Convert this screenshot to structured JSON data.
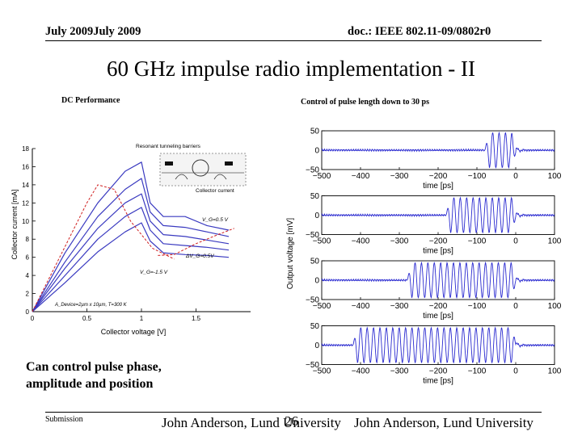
{
  "header": {
    "date": "July 2009July 2009",
    "doc": "doc.: IEEE 802.11-09/0802r0"
  },
  "title": "60 GHz impulse radio implementation - II",
  "left_caption": "DC Performance",
  "right_caption": "Control of pulse length down to 30 ps",
  "note_lines": [
    "Can control pulse phase,",
    "amplitude and position"
  ],
  "footer": {
    "submission": "Submission",
    "page": "26",
    "author": "John Anderson, Lund University",
    "author_repeat": "John Anderson, Lund University"
  },
  "chart_data": [
    {
      "type": "line",
      "xlabel": "Collector voltage [V]",
      "ylabel": "Collector current [mA]",
      "xlim": [
        0,
        2
      ],
      "ylim": [
        0,
        18
      ],
      "x_ticks": [
        "0",
        "0.5",
        "1",
        "1.5"
      ],
      "y_ticks": [
        "0",
        "2",
        "4",
        "6",
        "8",
        "10",
        "12",
        "14",
        "16",
        "18"
      ],
      "annotations": [
        "Resonant tunneling barriers",
        "Collector current",
        "V_G=0.5 V",
        "ΔV_G=0.5V",
        "V_G=-1.5 V",
        "A_Device=2µm x 10µm, T=300 K"
      ],
      "series": [
        {
          "x": [
            0,
            0.3,
            0.6,
            0.85,
            1.0,
            1.08,
            1.2,
            1.4,
            1.6,
            1.8
          ],
          "y": [
            0,
            6.5,
            12,
            15.5,
            16.5,
            12,
            10.5,
            10.5,
            9.5,
            9
          ]
        },
        {
          "x": [
            0,
            0.3,
            0.6,
            0.85,
            1.0,
            1.08,
            1.2,
            1.4,
            1.6,
            1.8
          ],
          "y": [
            0,
            5.5,
            10.5,
            13.5,
            14.7,
            11,
            9.5,
            9.3,
            8.8,
            8.3
          ]
        },
        {
          "x": [
            0,
            0.3,
            0.6,
            0.85,
            1.0,
            1.08,
            1.2,
            1.4,
            1.6,
            1.8
          ],
          "y": [
            0,
            4.8,
            9.2,
            12,
            13,
            10,
            8.5,
            8.3,
            7.9,
            7.5
          ]
        },
        {
          "x": [
            0,
            0.3,
            0.6,
            0.85,
            1.0,
            1.08,
            1.2,
            1.4,
            1.6,
            1.8
          ],
          "y": [
            0,
            4,
            8,
            10.5,
            11.5,
            9,
            7.5,
            7.3,
            7.1,
            6.8
          ]
        },
        {
          "x": [
            0,
            0.3,
            0.6,
            0.85,
            1.0,
            1.08,
            1.2,
            1.4,
            1.6,
            1.8
          ],
          "y": [
            0,
            3.2,
            6.6,
            8.8,
            9.8,
            7.8,
            6.5,
            6.3,
            6.2,
            6
          ]
        }
      ],
      "dashed_series": [
        {
          "x": [
            0,
            0.25,
            0.5,
            0.6,
            0.75,
            0.9,
            1.1,
            1.3
          ],
          "y": [
            0,
            6,
            12,
            14,
            13.5,
            10,
            7,
            5.8
          ]
        },
        {
          "x": [
            1.15,
            1.3,
            1.5,
            1.7,
            1.85
          ],
          "y": [
            6.2,
            6.3,
            7.5,
            8.5,
            9.2
          ]
        }
      ]
    },
    {
      "type": "line",
      "xlabel": "time [ps]",
      "ylabel": "Output voltage [mV]",
      "xlim": [
        -500,
        100
      ],
      "ylim": [
        -50,
        50
      ],
      "x_ticks": [
        "-500",
        "-400",
        "-300",
        "-200",
        "-100",
        "0",
        "100"
      ],
      "y_ticks": [
        "50",
        "0",
        "-50"
      ],
      "panels": [
        {
          "pulse_start": -80,
          "pulse_end": 0,
          "amplitude": 45
        },
        {
          "pulse_start": -180,
          "pulse_end": 0,
          "amplitude": 45
        },
        {
          "pulse_start": -280,
          "pulse_end": 0,
          "amplitude": 45
        },
        {
          "pulse_start": -420,
          "pulse_end": 0,
          "amplitude": 45
        }
      ]
    }
  ]
}
